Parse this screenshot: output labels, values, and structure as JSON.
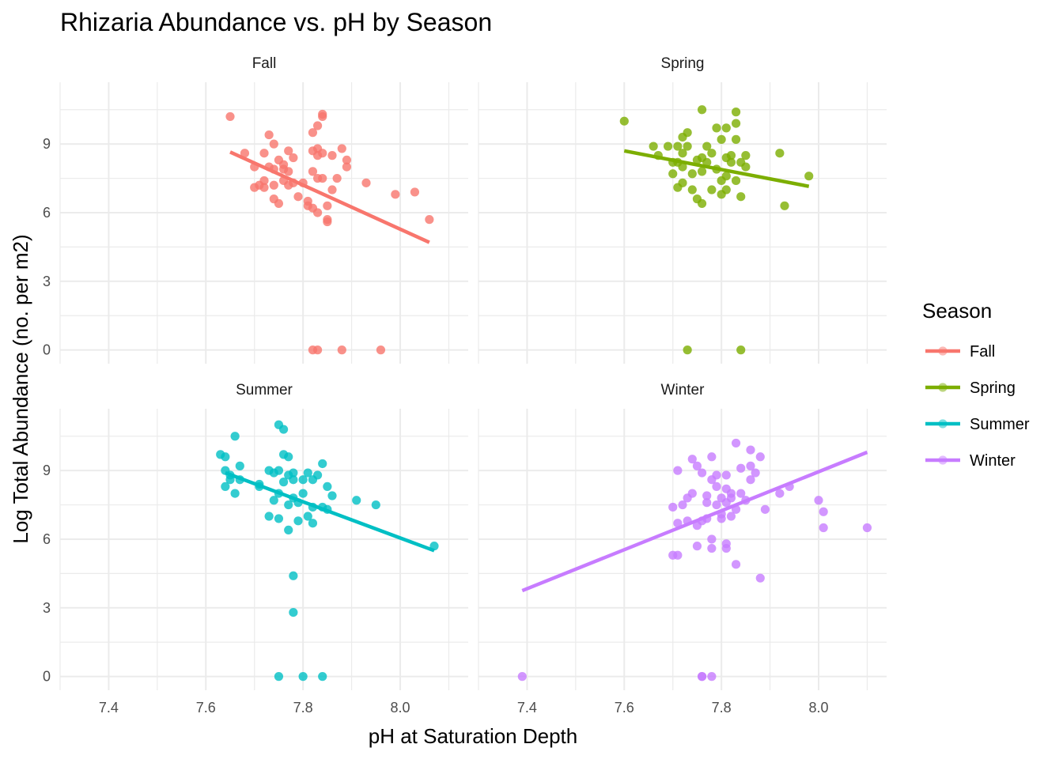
{
  "chart_data": {
    "type": "scatter",
    "title": "Rhizaria Abundance vs. pH by Season",
    "xlabel": "pH at Saturation Depth",
    "ylabel": "Log Total Abundance (no. per m2)",
    "xlim": [
      7.3,
      8.14
    ],
    "ylim": [
      -0.6,
      11.7
    ],
    "x_ticks": [
      "7.4",
      "7.6",
      "7.8",
      "8.0"
    ],
    "y_ticks": [
      "0",
      "3",
      "6",
      "9"
    ],
    "grid": true,
    "legend": {
      "title": "Season",
      "position": "right"
    },
    "series": [
      {
        "name": "Fall",
        "color": "#F8766D",
        "trend": [
          [
            7.65,
            8.65
          ],
          [
            8.06,
            4.7
          ]
        ],
        "points": [
          [
            7.65,
            10.2
          ],
          [
            7.68,
            8.6
          ],
          [
            7.7,
            8.0
          ],
          [
            7.7,
            7.1
          ],
          [
            7.71,
            7.2
          ],
          [
            7.72,
            8.6
          ],
          [
            7.72,
            7.1
          ],
          [
            7.72,
            7.4
          ],
          [
            7.73,
            9.4
          ],
          [
            7.73,
            8.0
          ],
          [
            7.74,
            7.9
          ],
          [
            7.74,
            9.0
          ],
          [
            7.74,
            7.2
          ],
          [
            7.74,
            6.6
          ],
          [
            7.75,
            6.4
          ],
          [
            7.75,
            8.3
          ],
          [
            7.76,
            8.1
          ],
          [
            7.76,
            7.4
          ],
          [
            7.76,
            7.9
          ],
          [
            7.77,
            8.7
          ],
          [
            7.77,
            7.8
          ],
          [
            7.77,
            7.2
          ],
          [
            7.78,
            8.4
          ],
          [
            7.78,
            7.3
          ],
          [
            7.79,
            6.7
          ],
          [
            7.8,
            7.3
          ],
          [
            7.81,
            6.5
          ],
          [
            7.81,
            6.3
          ],
          [
            7.82,
            7.8
          ],
          [
            7.82,
            8.7
          ],
          [
            7.82,
            6.2
          ],
          [
            7.82,
            9.5
          ],
          [
            7.83,
            8.8
          ],
          [
            7.83,
            8.5
          ],
          [
            7.83,
            9.8
          ],
          [
            7.83,
            7.5
          ],
          [
            7.83,
            6.0
          ],
          [
            7.84,
            10.2
          ],
          [
            7.84,
            10.3
          ],
          [
            7.84,
            8.6
          ],
          [
            7.84,
            7.5
          ],
          [
            7.85,
            6.3
          ],
          [
            7.85,
            5.7
          ],
          [
            7.85,
            5.6
          ],
          [
            7.86,
            8.5
          ],
          [
            7.86,
            7.0
          ],
          [
            7.87,
            7.5
          ],
          [
            7.88,
            8.8
          ],
          [
            7.89,
            8.0
          ],
          [
            7.89,
            8.3
          ],
          [
            7.93,
            7.3
          ],
          [
            7.99,
            6.8
          ],
          [
            8.03,
            6.9
          ],
          [
            8.06,
            5.7
          ],
          [
            7.82,
            0.0
          ],
          [
            7.83,
            0.0
          ],
          [
            7.88,
            0.0
          ],
          [
            7.96,
            0.0
          ]
        ]
      },
      {
        "name": "Spring",
        "color": "#7CAE00",
        "trend": [
          [
            7.6,
            8.7
          ],
          [
            7.98,
            7.15
          ]
        ],
        "points": [
          [
            7.6,
            10.0
          ],
          [
            7.66,
            8.9
          ],
          [
            7.67,
            8.5
          ],
          [
            7.69,
            8.9
          ],
          [
            7.7,
            8.2
          ],
          [
            7.7,
            7.7
          ],
          [
            7.71,
            8.9
          ],
          [
            7.71,
            8.2
          ],
          [
            7.71,
            7.1
          ],
          [
            7.72,
            9.3
          ],
          [
            7.72,
            8.0
          ],
          [
            7.72,
            8.6
          ],
          [
            7.72,
            7.3
          ],
          [
            7.73,
            9.5
          ],
          [
            7.73,
            8.9
          ],
          [
            7.74,
            7.7
          ],
          [
            7.74,
            7.0
          ],
          [
            7.75,
            8.3
          ],
          [
            7.75,
            6.6
          ],
          [
            7.76,
            8.4
          ],
          [
            7.76,
            6.4
          ],
          [
            7.76,
            10.5
          ],
          [
            7.76,
            7.8
          ],
          [
            7.77,
            8.9
          ],
          [
            7.77,
            8.2
          ],
          [
            7.78,
            8.6
          ],
          [
            7.78,
            7.0
          ],
          [
            7.79,
            9.7
          ],
          [
            7.79,
            7.9
          ],
          [
            7.8,
            9.2
          ],
          [
            7.8,
            7.4
          ],
          [
            7.8,
            6.8
          ],
          [
            7.81,
            9.7
          ],
          [
            7.81,
            8.4
          ],
          [
            7.81,
            7.6
          ],
          [
            7.81,
            7.0
          ],
          [
            7.82,
            8.5
          ],
          [
            7.82,
            8.2
          ],
          [
            7.83,
            10.4
          ],
          [
            7.83,
            9.9
          ],
          [
            7.83,
            9.2
          ],
          [
            7.83,
            7.4
          ],
          [
            7.84,
            8.2
          ],
          [
            7.84,
            6.7
          ],
          [
            7.85,
            8.0
          ],
          [
            7.85,
            8.5
          ],
          [
            7.92,
            8.6
          ],
          [
            7.93,
            6.3
          ],
          [
            7.98,
            7.6
          ],
          [
            7.73,
            0.0
          ],
          [
            7.84,
            0.0
          ]
        ]
      },
      {
        "name": "Summer",
        "color": "#00BFC4",
        "trend": [
          [
            7.64,
            8.9
          ],
          [
            8.07,
            5.5
          ]
        ],
        "points": [
          [
            7.63,
            9.7
          ],
          [
            7.64,
            8.3
          ],
          [
            7.64,
            9.6
          ],
          [
            7.64,
            9.0
          ],
          [
            7.65,
            8.8
          ],
          [
            7.65,
            8.6
          ],
          [
            7.66,
            8.0
          ],
          [
            7.66,
            10.5
          ],
          [
            7.67,
            9.2
          ],
          [
            7.67,
            8.6
          ],
          [
            7.71,
            8.3
          ],
          [
            7.71,
            8.4
          ],
          [
            7.73,
            9.0
          ],
          [
            7.73,
            7.0
          ],
          [
            7.74,
            7.7
          ],
          [
            7.74,
            8.9
          ],
          [
            7.75,
            9.0
          ],
          [
            7.75,
            8.0
          ],
          [
            7.75,
            6.9
          ],
          [
            7.75,
            11.0
          ],
          [
            7.76,
            9.7
          ],
          [
            7.76,
            8.5
          ],
          [
            7.76,
            10.8
          ],
          [
            7.77,
            9.6
          ],
          [
            7.77,
            8.8
          ],
          [
            7.77,
            7.5
          ],
          [
            7.77,
            6.4
          ],
          [
            7.78,
            8.9
          ],
          [
            7.78,
            8.6
          ],
          [
            7.78,
            7.8
          ],
          [
            7.79,
            7.6
          ],
          [
            7.79,
            6.8
          ],
          [
            7.8,
            8.6
          ],
          [
            7.8,
            8.0
          ],
          [
            7.81,
            8.9
          ],
          [
            7.81,
            7.0
          ],
          [
            7.82,
            8.6
          ],
          [
            7.82,
            7.4
          ],
          [
            7.82,
            6.7
          ],
          [
            7.83,
            8.8
          ],
          [
            7.84,
            9.3
          ],
          [
            7.84,
            7.4
          ],
          [
            7.85,
            8.3
          ],
          [
            7.85,
            7.3
          ],
          [
            7.86,
            7.9
          ],
          [
            7.91,
            7.7
          ],
          [
            7.95,
            7.5
          ],
          [
            8.07,
            5.7
          ],
          [
            7.78,
            4.4
          ],
          [
            7.78,
            2.8
          ],
          [
            7.75,
            0.0
          ],
          [
            7.8,
            0.0
          ],
          [
            7.84,
            0.0
          ]
        ]
      },
      {
        "name": "Winter",
        "color": "#C77CFF",
        "trend": [
          [
            7.39,
            3.75
          ],
          [
            8.1,
            9.8
          ]
        ],
        "points": [
          [
            7.39,
            0.0
          ],
          [
            7.7,
            5.3
          ],
          [
            7.7,
            7.4
          ],
          [
            7.71,
            9.0
          ],
          [
            7.71,
            6.7
          ],
          [
            7.71,
            5.3
          ],
          [
            7.72,
            7.5
          ],
          [
            7.73,
            7.8
          ],
          [
            7.73,
            6.8
          ],
          [
            7.74,
            9.5
          ],
          [
            7.74,
            8.0
          ],
          [
            7.75,
            9.2
          ],
          [
            7.75,
            6.6
          ],
          [
            7.75,
            5.7
          ],
          [
            7.76,
            8.9
          ],
          [
            7.76,
            6.8
          ],
          [
            7.77,
            7.9
          ],
          [
            7.77,
            7.6
          ],
          [
            7.77,
            6.9
          ],
          [
            7.78,
            9.6
          ],
          [
            7.78,
            8.6
          ],
          [
            7.78,
            6.0
          ],
          [
            7.78,
            5.6
          ],
          [
            7.79,
            8.8
          ],
          [
            7.79,
            8.3
          ],
          [
            7.79,
            7.5
          ],
          [
            7.8,
            7.8
          ],
          [
            7.8,
            7.1
          ],
          [
            7.8,
            6.9
          ],
          [
            7.81,
            8.8
          ],
          [
            7.81,
            8.2
          ],
          [
            7.81,
            7.6
          ],
          [
            7.81,
            5.8
          ],
          [
            7.81,
            5.6
          ],
          [
            7.82,
            8.0
          ],
          [
            7.82,
            7.8
          ],
          [
            7.82,
            7.0
          ],
          [
            7.83,
            10.2
          ],
          [
            7.83,
            4.9
          ],
          [
            7.83,
            7.3
          ],
          [
            7.84,
            8.0
          ],
          [
            7.84,
            9.1
          ],
          [
            7.85,
            7.7
          ],
          [
            7.86,
            9.9
          ],
          [
            7.86,
            9.2
          ],
          [
            7.86,
            8.6
          ],
          [
            7.87,
            8.9
          ],
          [
            7.88,
            9.6
          ],
          [
            7.88,
            4.3
          ],
          [
            7.89,
            7.3
          ],
          [
            7.92,
            8.0
          ],
          [
            7.94,
            8.3
          ],
          [
            8.0,
            7.7
          ],
          [
            8.01,
            6.5
          ],
          [
            8.01,
            7.2
          ],
          [
            8.1,
            6.5
          ],
          [
            7.76,
            0.0
          ],
          [
            7.76,
            0.0
          ],
          [
            7.78,
            0.0
          ]
        ]
      }
    ]
  }
}
